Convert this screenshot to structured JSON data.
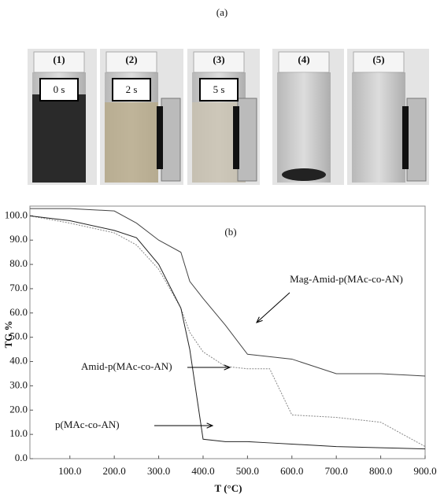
{
  "figure_label": "(a)",
  "photos": [
    {
      "label": "(1)",
      "time": "0 s"
    },
    {
      "label": "(2)",
      "time": "2 s"
    },
    {
      "label": "(3)",
      "time": "5 s"
    },
    {
      "label": "(4)"
    },
    {
      "label": "(5)"
    }
  ],
  "chart_data": {
    "type": "line",
    "panel_label": "(b)",
    "x_label": "T (°C)",
    "y_label": "TG %",
    "x": [
      10,
      100,
      200,
      250,
      300,
      350,
      370,
      400,
      450,
      500,
      550,
      600,
      700,
      800,
      900
    ],
    "series": [
      {
        "name": "Mag-Amid-p(MAc-co-AN)",
        "color": "#444444",
        "values": [
          103,
          103,
          102,
          97,
          90,
          85,
          73,
          66,
          55,
          43,
          42,
          41,
          35,
          35,
          34
        ]
      },
      {
        "name": "Amid-p(MAc-co-AN)",
        "color": "#888888",
        "values": [
          100,
          97,
          93,
          88,
          78,
          62,
          52,
          44,
          38,
          37,
          37,
          18,
          17,
          15,
          5
        ]
      },
      {
        "name": "p(MAc-co-AN)",
        "color": "#222222",
        "values": [
          100,
          98,
          94,
          91,
          80,
          62,
          45,
          8,
          7,
          7,
          6.5,
          6,
          5,
          4.5,
          4
        ]
      }
    ],
    "xlim": [
      10,
      900
    ],
    "ylim": [
      0,
      104
    ],
    "xticks": [
      {
        "value": 100,
        "label": "100.0"
      },
      {
        "value": 200,
        "label": "200.0"
      },
      {
        "value": 300,
        "label": "300.0"
      },
      {
        "value": 400,
        "label": "400.0"
      },
      {
        "value": 500,
        "label": "500.0"
      },
      {
        "value": 600,
        "label": "600.0"
      },
      {
        "value": 700,
        "label": "700.0"
      },
      {
        "value": 800,
        "label": "800.0"
      },
      {
        "value": 900,
        "label": "900.0"
      }
    ],
    "yticks": [
      {
        "value": 0,
        "label": "0.0"
      },
      {
        "value": 10,
        "label": "10.0"
      },
      {
        "value": 20,
        "label": "20.0"
      },
      {
        "value": 30,
        "label": "30.0"
      },
      {
        "value": 40,
        "label": "40.0"
      },
      {
        "value": 50,
        "label": "50.0"
      },
      {
        "value": 60,
        "label": "60.0"
      },
      {
        "value": 70,
        "label": "70.0"
      },
      {
        "value": 80,
        "label": "80.0"
      },
      {
        "value": 90,
        "label": "90.0"
      },
      {
        "value": 100,
        "label": "100.0"
      }
    ]
  }
}
